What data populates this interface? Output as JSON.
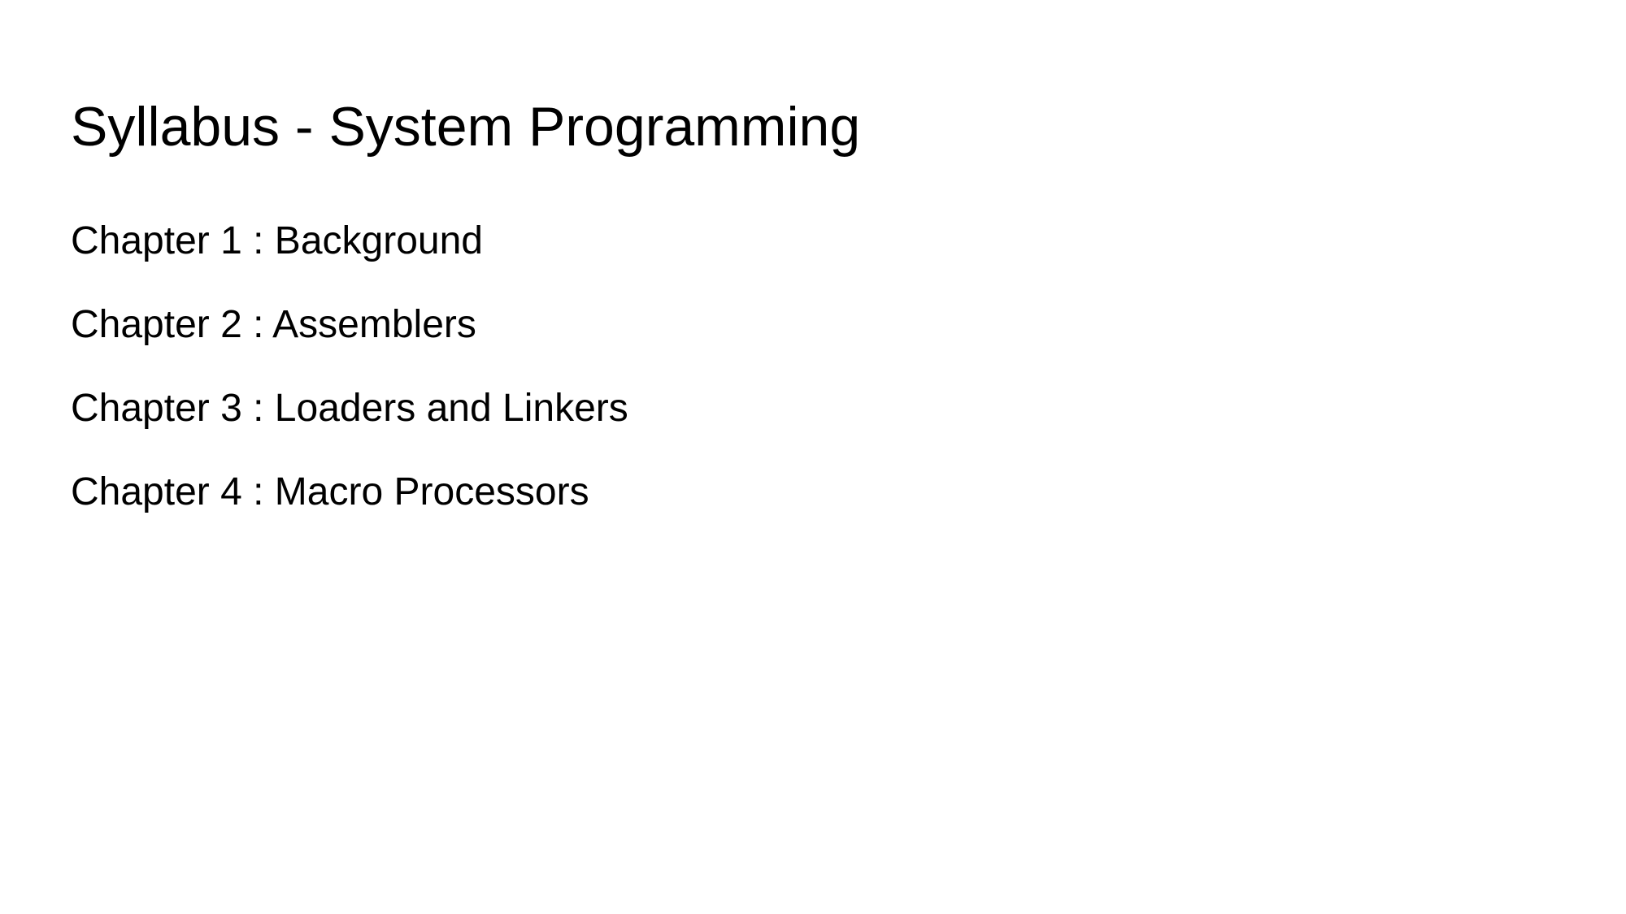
{
  "slide": {
    "title": "Syllabus - System Programming",
    "chapters": [
      "Chapter 1 : Background",
      "Chapter 2 : Assemblers",
      "Chapter 3 : Loaders and Linkers",
      "Chapter 4 : Macro Processors"
    ]
  }
}
